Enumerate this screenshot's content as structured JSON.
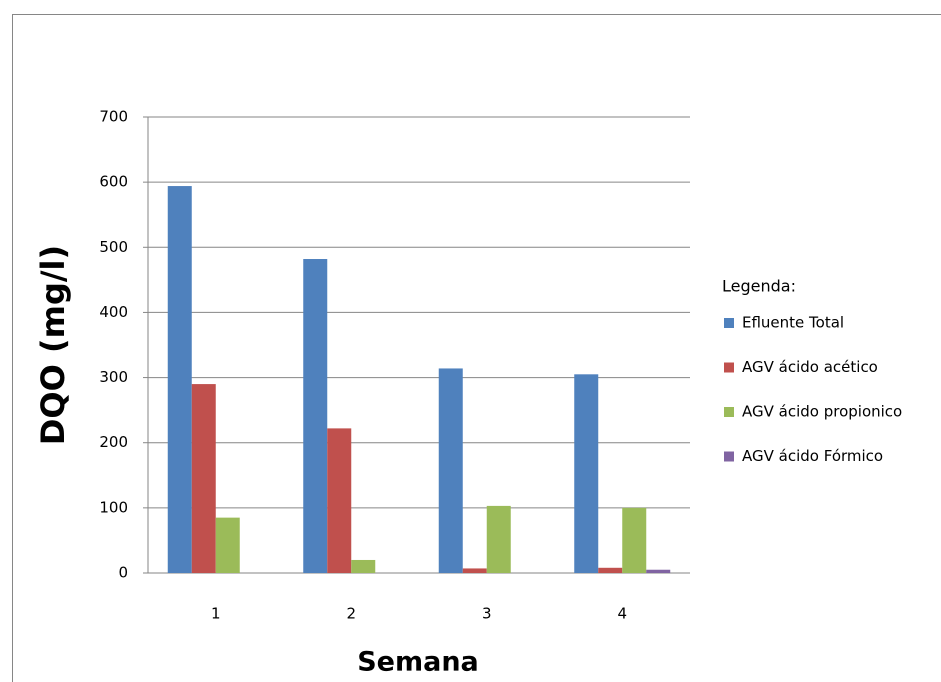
{
  "chart_data": {
    "type": "bar",
    "categories": [
      "1",
      "2",
      "3",
      "4"
    ],
    "series": [
      {
        "name": "Efluente Total",
        "color": "#4f81bd",
        "values": [
          594,
          482,
          314,
          305
        ]
      },
      {
        "name": "AGV ácido acético",
        "color": "#c0504d",
        "values": [
          290,
          222,
          7,
          8
        ]
      },
      {
        "name": "AGV ácido propionico",
        "color": "#9bbb59",
        "values": [
          85,
          20,
          103,
          100
        ]
      },
      {
        "name": "AGV ácido Fórmico",
        "color": "#8064a2",
        "values": [
          0,
          0,
          0,
          5
        ]
      }
    ],
    "ylim": [
      0,
      700
    ],
    "yticks": [
      0,
      100,
      200,
      300,
      400,
      500,
      600,
      700
    ],
    "grid": true,
    "legend": "right",
    "legend_title": "Legenda:",
    "y_label": "DQO (mg/l)",
    "x_label": "Semana"
  }
}
